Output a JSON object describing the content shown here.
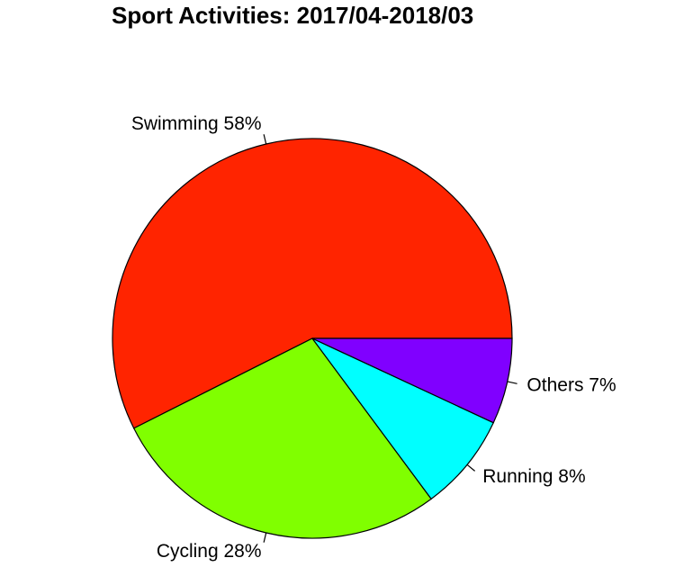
{
  "chart_data": {
    "type": "pie",
    "title": "Sport Activities: 2017/04-2018/03",
    "start_angle_deg": 0,
    "direction": "counterclockwise",
    "slices": [
      {
        "label": "Swimming 58%",
        "category": "Swimming",
        "percent": 58,
        "color": "#FF2400"
      },
      {
        "label": "Cycling 28%",
        "category": "Cycling",
        "percent": 28,
        "color": "#80FF00"
      },
      {
        "label": "Running 8%",
        "category": "Running",
        "percent": 8,
        "color": "#00FFFF"
      },
      {
        "label": "Others 7%",
        "category": "Others",
        "percent": 7,
        "color": "#8000FF"
      }
    ]
  }
}
